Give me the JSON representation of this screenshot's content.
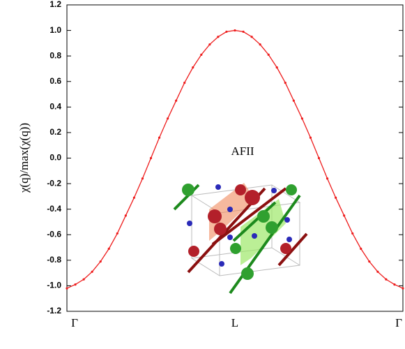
{
  "chart_data": {
    "type": "line",
    "y_label": "χ(q)/max(χ(q))",
    "annotation": "AFII",
    "categories": [
      "Γ",
      null,
      null,
      null,
      null,
      null,
      null,
      null,
      null,
      null,
      null,
      null,
      null,
      null,
      null,
      null,
      null,
      null,
      null,
      null,
      "L",
      null,
      null,
      null,
      null,
      null,
      null,
      null,
      null,
      null,
      null,
      null,
      null,
      null,
      null,
      null,
      null,
      null,
      null,
      null,
      "Γ"
    ],
    "series": [
      {
        "color": "#ee1c1c",
        "values": [
          -1.02,
          -0.99,
          -0.95,
          -0.89,
          -0.81,
          -0.71,
          -0.59,
          -0.45,
          -0.31,
          -0.16,
          0.0,
          0.16,
          0.31,
          0.45,
          0.59,
          0.71,
          0.81,
          0.89,
          0.95,
          0.99,
          1.0,
          0.99,
          0.95,
          0.89,
          0.81,
          0.71,
          0.59,
          0.45,
          0.31,
          0.16,
          0.0,
          -0.16,
          -0.31,
          -0.45,
          -0.59,
          -0.71,
          -0.81,
          -0.89,
          -0.95,
          -0.99,
          -1.02
        ]
      }
    ],
    "ylim": [
      -1.2,
      1.2
    ],
    "yticks": [
      -1.2,
      {
        "value": -1,
        "label": "-1.0"
      },
      -0.8,
      -0.6,
      -0.4,
      -0.2,
      {
        "value": 0,
        "label": "0.0"
      },
      0.2,
      0.4,
      0.6,
      0.8,
      {
        "value": 1,
        "label": "1.0"
      },
      1.2
    ]
  }
}
